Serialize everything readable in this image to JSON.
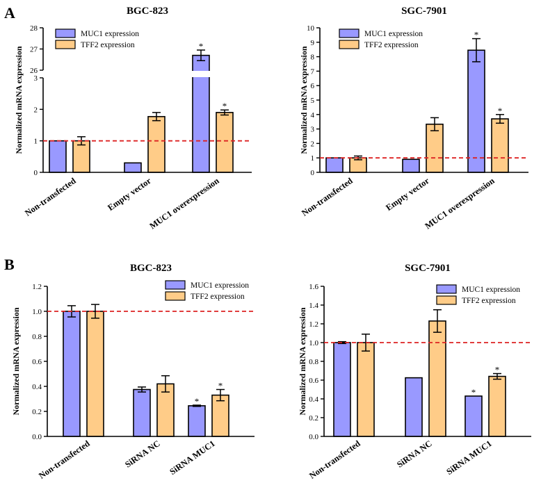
{
  "figure": {
    "panels": [
      {
        "letter": "A"
      },
      {
        "letter": "B"
      }
    ]
  },
  "colors": {
    "muc1": "#9999ff",
    "tff2": "#ffcc88",
    "reference_line": "#dd2222",
    "axis": "#000000"
  },
  "chart_data": [
    {
      "type": "bar",
      "panel": "A",
      "title": "BGC-823",
      "ylabel": "Normalized mRNA expression",
      "xlabel": "",
      "categories": [
        "Non-transfected",
        "Empty vector",
        "MUC1 overexpression"
      ],
      "series": [
        {
          "name": "MUC1 expression",
          "color_key": "muc1",
          "values": [
            1.0,
            0.3,
            26.7
          ],
          "errors": [
            0.0,
            0.0,
            0.25
          ],
          "significant": [
            false,
            false,
            true
          ]
        },
        {
          "name": "TFF2 expression",
          "color_key": "tff2",
          "values": [
            1.0,
            1.77,
            1.9
          ],
          "errors": [
            0.13,
            0.13,
            0.08
          ],
          "significant": [
            false,
            false,
            true
          ]
        }
      ],
      "axis_break": true,
      "ylim_lower": [
        0,
        3
      ],
      "ylim_upper": [
        26,
        28
      ],
      "yticks_lower": [
        "0",
        "1",
        "2",
        "3"
      ],
      "yticks_upper": [
        "26",
        "27",
        "28"
      ],
      "reference_line": 1.0,
      "legend_position": "top-left",
      "significance_marker": "*"
    },
    {
      "type": "bar",
      "panel": "A",
      "title": "SGC-7901",
      "ylabel": "Normalized mRNA expression",
      "xlabel": "",
      "categories": [
        "Non-transfected",
        "Empty vector",
        "MUC1 overexpression"
      ],
      "series": [
        {
          "name": "MUC1 expression",
          "color_key": "muc1",
          "values": [
            1.0,
            0.9,
            8.45
          ],
          "errors": [
            0.0,
            0.0,
            0.8
          ],
          "significant": [
            false,
            false,
            true
          ]
        },
        {
          "name": "TFF2 expression",
          "color_key": "tff2",
          "values": [
            1.0,
            3.33,
            3.7
          ],
          "errors": [
            0.13,
            0.45,
            0.3
          ],
          "significant": [
            false,
            false,
            true
          ]
        }
      ],
      "ylim": [
        0,
        10
      ],
      "yticks": [
        "0",
        "1",
        "2",
        "3",
        "4",
        "5",
        "6",
        "7",
        "8",
        "9",
        "10"
      ],
      "reference_line": 1.0,
      "legend_position": "top-left",
      "significance_marker": "*"
    },
    {
      "type": "bar",
      "panel": "B",
      "title": "BGC-823",
      "ylabel": "Normalized mRNA expression",
      "xlabel": "",
      "categories": [
        "Non-transfected",
        "SiRNA NC",
        "SiRNA MUC1"
      ],
      "series": [
        {
          "name": "MUC1 expression",
          "color_key": "muc1",
          "values": [
            1.0,
            0.375,
            0.245
          ],
          "errors": [
            0.045,
            0.02,
            0.005
          ],
          "significant": [
            false,
            false,
            true
          ]
        },
        {
          "name": "TFF2 expression",
          "color_key": "tff2",
          "values": [
            1.0,
            0.42,
            0.33
          ],
          "errors": [
            0.055,
            0.065,
            0.045
          ],
          "significant": [
            false,
            false,
            true
          ]
        }
      ],
      "ylim": [
        0,
        1.2
      ],
      "yticks": [
        "0.0",
        "0.2",
        "0.4",
        "0.6",
        "0.8",
        "1.0",
        "1.2"
      ],
      "reference_line": 1.0,
      "legend_position": "top-right",
      "significance_marker": "*"
    },
    {
      "type": "bar",
      "panel": "B",
      "title": "SGC-7901",
      "ylabel": "Normalized mRNA expression",
      "xlabel": "",
      "categories": [
        "Non-transfected",
        "SiRNA NC",
        "SiRNA MUC1"
      ],
      "series": [
        {
          "name": "MUC1 expression",
          "color_key": "muc1",
          "values": [
            1.0,
            0.625,
            0.43
          ],
          "errors": [
            0.01,
            0.0,
            0.0
          ],
          "significant": [
            false,
            false,
            true
          ]
        },
        {
          "name": "TFF2 expression",
          "color_key": "tff2",
          "values": [
            1.0,
            1.23,
            0.64
          ],
          "errors": [
            0.09,
            0.12,
            0.03
          ],
          "significant": [
            false,
            false,
            true
          ]
        }
      ],
      "ylim": [
        0,
        1.6
      ],
      "yticks": [
        "0.0",
        "0.2",
        "0.4",
        "0.6",
        "0.8",
        "1.0",
        "1.2",
        "1.4",
        "1.6"
      ],
      "reference_line": 1.0,
      "legend_position": "top-right",
      "significance_marker": "*"
    }
  ]
}
